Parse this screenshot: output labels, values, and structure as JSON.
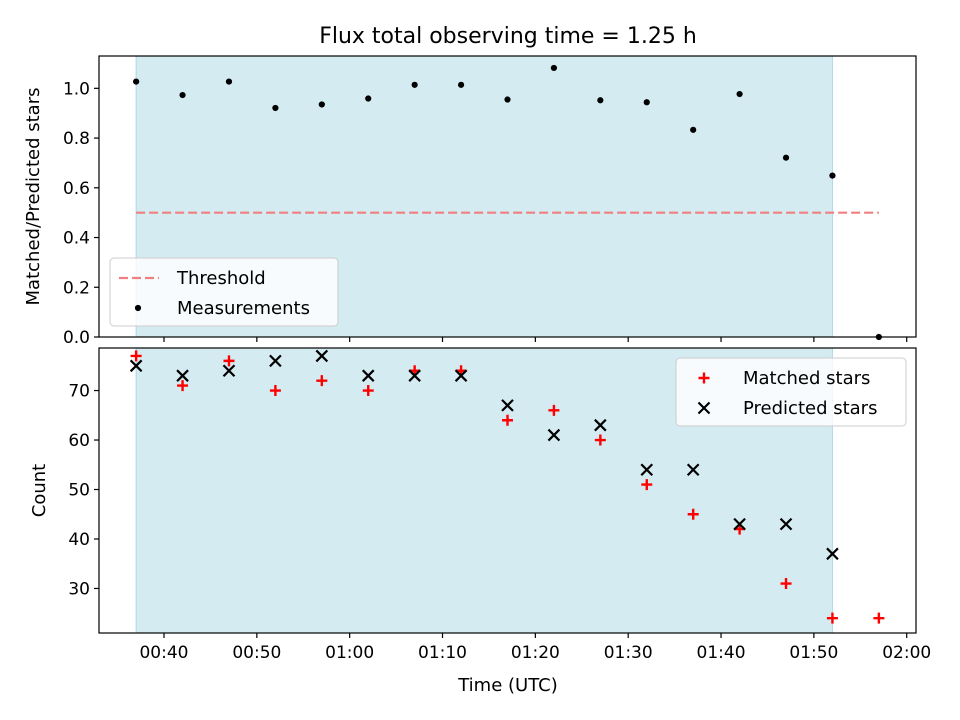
{
  "figure": {
    "title": "Flux total observing time = 1.25 h",
    "xlabel": "Time (UTC)"
  },
  "colors": {
    "shade": "#add8e6",
    "threshold": "#f08080",
    "matched": "#ff0000",
    "predicted": "#000000",
    "measurement": "#000000"
  },
  "chart_data": [
    {
      "type": "scatter",
      "ylabel": "Matched/Predicted stars",
      "xlim": [
        "00:33:00",
        "02:01:00"
      ],
      "ylim": [
        0,
        1.13
      ],
      "x_ticks": [
        "00:40",
        "00:50",
        "01:00",
        "01:10",
        "01:20",
        "01:30",
        "01:40",
        "01:50",
        "02:00"
      ],
      "y_ticks": [
        "0.0",
        "0.2",
        "0.4",
        "0.6",
        "0.8",
        "1.0"
      ],
      "shaded_span": [
        "00:37:00",
        "01:52:00"
      ],
      "legend": {
        "placement": "lower-left",
        "entries": [
          "Threshold",
          "Measurements"
        ]
      },
      "series": [
        {
          "name": "Threshold",
          "kind": "dashed-line",
          "x": [
            "00:37:00",
            "01:57:00"
          ],
          "values": [
            0.5,
            0.5
          ]
        },
        {
          "name": "Measurements",
          "kind": "dots",
          "x": [
            "00:37:00",
            "00:42:00",
            "00:47:00",
            "00:52:00",
            "00:57:00",
            "01:02:00",
            "01:07:00",
            "01:12:00",
            "01:17:00",
            "01:22:00",
            "01:27:00",
            "01:32:00",
            "01:37:00",
            "01:42:00",
            "01:47:00",
            "01:52:00",
            "01:57:00"
          ],
          "values": [
            1.027,
            0.973,
            1.027,
            0.921,
            0.935,
            0.959,
            1.014,
            1.014,
            0.955,
            1.082,
            0.952,
            0.944,
            0.833,
            0.977,
            0.721,
            0.649,
            0.0
          ]
        }
      ]
    },
    {
      "type": "scatter",
      "ylabel": "Count",
      "xlim": [
        "00:33:00",
        "02:01:00"
      ],
      "ylim": [
        21,
        78.6
      ],
      "x_ticks": [
        "00:40",
        "00:50",
        "01:00",
        "01:10",
        "01:20",
        "01:30",
        "01:40",
        "01:50",
        "02:00"
      ],
      "y_ticks": [
        "30",
        "40",
        "50",
        "60",
        "70"
      ],
      "shaded_span": [
        "00:37:00",
        "01:52:00"
      ],
      "legend": {
        "placement": "top-right",
        "entries": [
          "Matched stars",
          "Predicted stars"
        ]
      },
      "series": [
        {
          "name": "Matched stars",
          "marker": "plus",
          "x": [
            "00:37:00",
            "00:42:00",
            "00:47:00",
            "00:52:00",
            "00:57:00",
            "01:02:00",
            "01:07:00",
            "01:12:00",
            "01:17:00",
            "01:22:00",
            "01:27:00",
            "01:32:00",
            "01:37:00",
            "01:42:00",
            "01:47:00",
            "01:52:00",
            "01:57:00"
          ],
          "values": [
            77,
            71,
            76,
            70,
            72,
            70,
            74,
            74,
            64,
            66,
            60,
            51,
            45,
            42,
            31,
            24,
            24
          ]
        },
        {
          "name": "Predicted stars",
          "marker": "x",
          "x": [
            "00:37:00",
            "00:42:00",
            "00:47:00",
            "00:52:00",
            "00:57:00",
            "01:02:00",
            "01:07:00",
            "01:12:00",
            "01:17:00",
            "01:22:00",
            "01:27:00",
            "01:32:00",
            "01:37:00",
            "01:42:00",
            "01:47:00",
            "01:52:00"
          ],
          "values": [
            75,
            73,
            74,
            76,
            77,
            73,
            73,
            73,
            67,
            61,
            63,
            54,
            54,
            43,
            43,
            37
          ]
        }
      ]
    }
  ]
}
